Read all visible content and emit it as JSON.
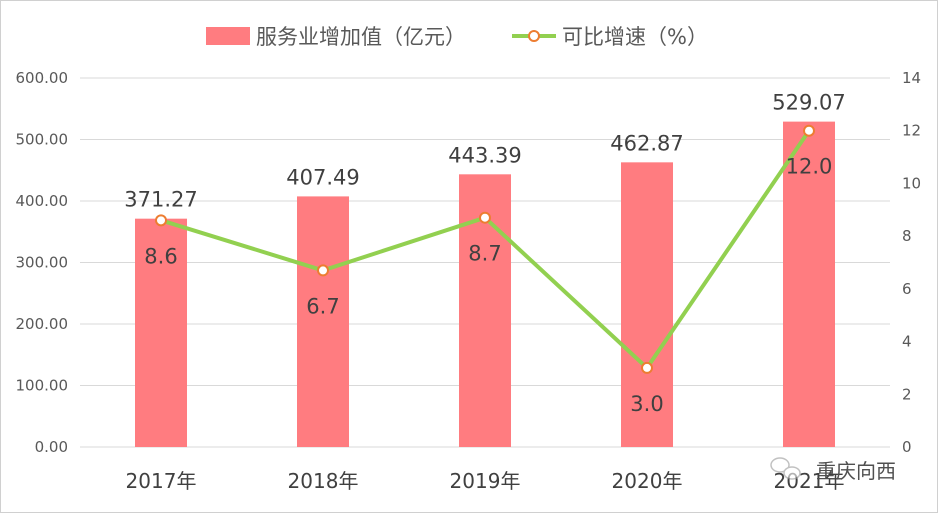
{
  "chart_data": {
    "type": "bar+line",
    "categories": [
      "2017年",
      "2018年",
      "2019年",
      "2020年",
      "2021年"
    ],
    "series": [
      {
        "name": "服务业增加值（亿元）",
        "type": "bar",
        "axis": "left",
        "color": "#FF7C80",
        "values": [
          371.27,
          407.49,
          443.39,
          462.87,
          529.07
        ],
        "labels": [
          "371.27",
          "407.49",
          "443.39",
          "462.87",
          "529.07"
        ]
      },
      {
        "name": "可比增速（%）",
        "type": "line",
        "axis": "right",
        "color": "#92D050",
        "marker_color": "#ED7D31",
        "values": [
          8.6,
          6.7,
          8.7,
          3.0,
          12.0
        ],
        "labels": [
          "8.6",
          "6.7",
          "8.7",
          "3.0",
          "12.0"
        ]
      }
    ],
    "left_axis": {
      "ylim": [
        0,
        600
      ],
      "ticks": [
        "0.00",
        "100.00",
        "200.00",
        "300.00",
        "400.00",
        "500.00",
        "600.00"
      ]
    },
    "right_axis": {
      "ylim": [
        0,
        14
      ],
      "ticks": [
        "0",
        "2",
        "4",
        "6",
        "8",
        "10",
        "12",
        "14"
      ]
    },
    "grid": true,
    "legend_position": "top"
  },
  "watermark": {
    "text": "重庆向西",
    "icon": "wechat-icon"
  }
}
